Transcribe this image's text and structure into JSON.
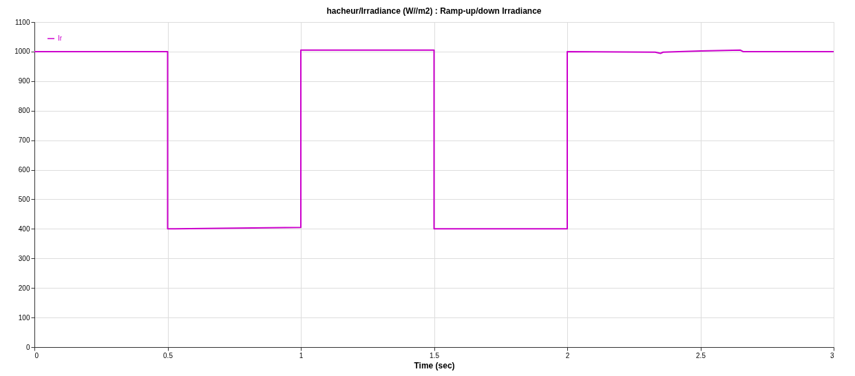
{
  "chart_data": {
    "type": "line",
    "title": "hacheur/Irradiance (W//m2) : Ramp-up/down Irradiance",
    "xlabel": "Time (sec)",
    "x": [
      0,
      0.5,
      0.5,
      0.7,
      1,
      1,
      1.5,
      1.5,
      2,
      2,
      2.33,
      2.35,
      2.36,
      2.5,
      2.65,
      2.66,
      3
    ],
    "series": [
      {
        "name": "Ir",
        "color": "#cc00cc",
        "values": [
          1000,
          1000,
          400,
          402,
          405,
          1005,
          1005,
          400,
          400,
          1000,
          998,
          994,
          998,
          1002,
          1005,
          1000,
          1000
        ]
      }
    ],
    "xlim": [
      0,
      3
    ],
    "xticks": [
      0,
      0.5,
      1,
      1.5,
      2,
      2.5,
      3
    ],
    "ylim": [
      0,
      1100
    ],
    "yticks": [
      0,
      100,
      200,
      300,
      400,
      500,
      600,
      700,
      800,
      900,
      1000,
      1100
    ],
    "grid": true,
    "legend": "top left",
    "marker": "none",
    "line_style": "solid"
  }
}
